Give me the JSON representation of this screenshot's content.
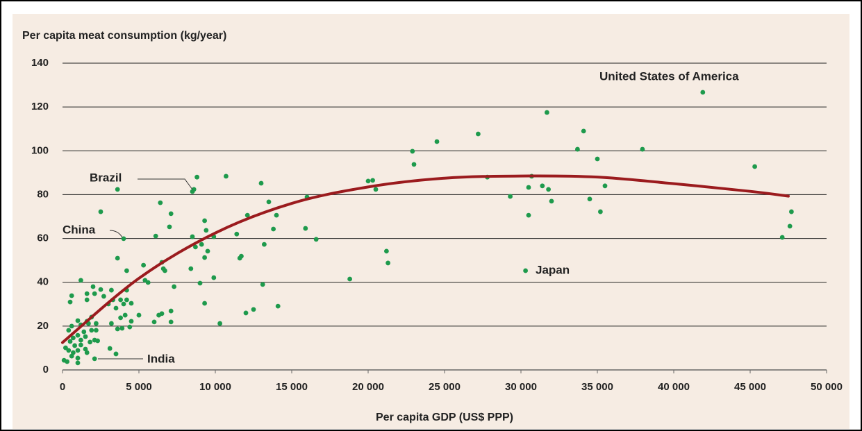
{
  "chart_data": {
    "type": "scatter",
    "title": "Per capita meat consumption (kg/year)",
    "x_label": "Per capita GDP (US$ PPP)",
    "annotations": [
      "United States of America",
      "Brazil",
      "China",
      "India",
      "Japan"
    ],
    "xlim": [
      0,
      50000
    ],
    "xticks": [
      0,
      {
        "value": 5000,
        "label": "5 000"
      },
      {
        "value": 10000,
        "label": "10 000"
      },
      {
        "value": 15000,
        "label": "15 000"
      },
      {
        "value": 20000,
        "label": "20 000"
      },
      {
        "value": 25000,
        "label": "25 000"
      },
      {
        "value": 30000,
        "label": "30 000"
      },
      {
        "value": 35000,
        "label": "35 000"
      },
      {
        "value": 40000,
        "label": "40 000"
      },
      {
        "value": 45000,
        "label": "45 000"
      },
      {
        "value": 50000,
        "label": "50 000"
      }
    ],
    "ylim": [
      0,
      140
    ],
    "yticks": [
      0,
      20,
      40,
      60,
      80,
      100,
      120,
      140
    ],
    "grid": true,
    "points": {
      "color": "#1e9a4c",
      "x": [
        41900,
        31700,
        34100,
        27200,
        24500,
        22900,
        33700,
        37950,
        35000,
        45300,
        23000,
        27800,
        30700,
        20000,
        20300,
        20500,
        30500,
        31400,
        31800,
        35500,
        29300,
        32000,
        34500,
        35200,
        30500,
        47700,
        47600,
        47100,
        21200,
        21300,
        30300,
        18800,
        16000,
        15900,
        16600,
        13000,
        10700,
        8800,
        8600,
        8500,
        6400,
        7100,
        7000,
        6100,
        13500,
        14000,
        12100,
        11400,
        9300,
        9400,
        8500,
        9900,
        13800,
        13200,
        9100,
        8700,
        9500,
        9300,
        11700,
        11600,
        8400,
        9900,
        9000,
        13100,
        9300,
        14100,
        12500,
        12000,
        10300,
        6500,
        6600,
        6700,
        5300,
        7300,
        5600,
        5400,
        7100,
        6500,
        6300,
        7100,
        6000,
        5000,
        2500,
        3600,
        4000,
        3600,
        4200,
        1200,
        2000,
        2500,
        3200,
        4200,
        1600,
        2100,
        600,
        2700,
        500,
        1600,
        3300,
        3800,
        3000,
        4000,
        4500,
        4200,
        3500,
        4100,
        3800,
        1900,
        1000,
        1600,
        2200,
        3200,
        4500,
        4400,
        3900,
        3600,
        1200,
        1900,
        600,
        400,
        1400,
        2200,
        1000,
        1500,
        1200,
        700,
        2100,
        1800,
        500,
        800,
        1200,
        200,
        400,
        1500,
        700,
        1000,
        600,
        1000,
        100,
        300,
        1000,
        1600,
        3100,
        3500,
        2100,
        1700,
        2300
      ],
      "values": [
        126.7,
        117.5,
        109,
        107.7,
        104.2,
        99.8,
        100.7,
        100.7,
        96.3,
        92.8,
        93.8,
        88,
        88.4,
        86.2,
        86.5,
        82.4,
        83.3,
        84,
        82.4,
        84,
        79.2,
        77,
        78,
        72.2,
        70.6,
        72.2,
        65.6,
        60.5,
        54.2,
        48.8,
        45.3,
        41.5,
        78.9,
        64.6,
        59.6,
        85.2,
        88.4,
        88,
        82.4,
        81.4,
        76.3,
        71.3,
        65.3,
        61.1,
        76.7,
        70.6,
        70.6,
        62,
        68.1,
        63.7,
        60.8,
        60.8,
        64.3,
        57.3,
        57.3,
        56.1,
        54.2,
        51.3,
        51.9,
        51,
        46.2,
        42.1,
        39.6,
        39,
        30.4,
        29.1,
        27.6,
        26,
        21.2,
        49.1,
        46.2,
        45.3,
        47.8,
        38,
        39.9,
        40.9,
        26.9,
        25.7,
        25,
        21.9,
        21.9,
        25,
        72.2,
        82.4,
        59.9,
        51,
        45.3,
        40.9,
        38,
        36.7,
        36.4,
        36.4,
        34.8,
        34.8,
        33.9,
        33.6,
        31,
        32,
        32,
        32,
        30.1,
        30.1,
        30.4,
        32,
        28.2,
        25,
        23.8,
        24.1,
        22.5,
        22.2,
        21.2,
        21.2,
        22.2,
        19.6,
        19,
        18.7,
        20.6,
        18.1,
        20,
        18.1,
        17.4,
        18.1,
        15.8,
        15.2,
        13.6,
        14.6,
        13.6,
        12.7,
        13,
        11.1,
        11.4,
        10.1,
        8.9,
        9.5,
        7.9,
        8.9,
        6.3,
        5.4,
        4.4,
        3.8,
        3.2,
        7.9,
        9.8,
        7.3,
        5.1,
        21.2,
        13.3
      ]
    },
    "trend": {
      "color": "#9b1b1e",
      "x": [
        0,
        5000,
        10000,
        15000,
        20000,
        25000,
        30000,
        35000,
        40000,
        45000,
        47500
      ],
      "values": [
        12.5,
        41.8,
        62.5,
        76,
        83.5,
        87.5,
        88.5,
        88,
        85,
        81.5,
        79.3
      ]
    }
  }
}
